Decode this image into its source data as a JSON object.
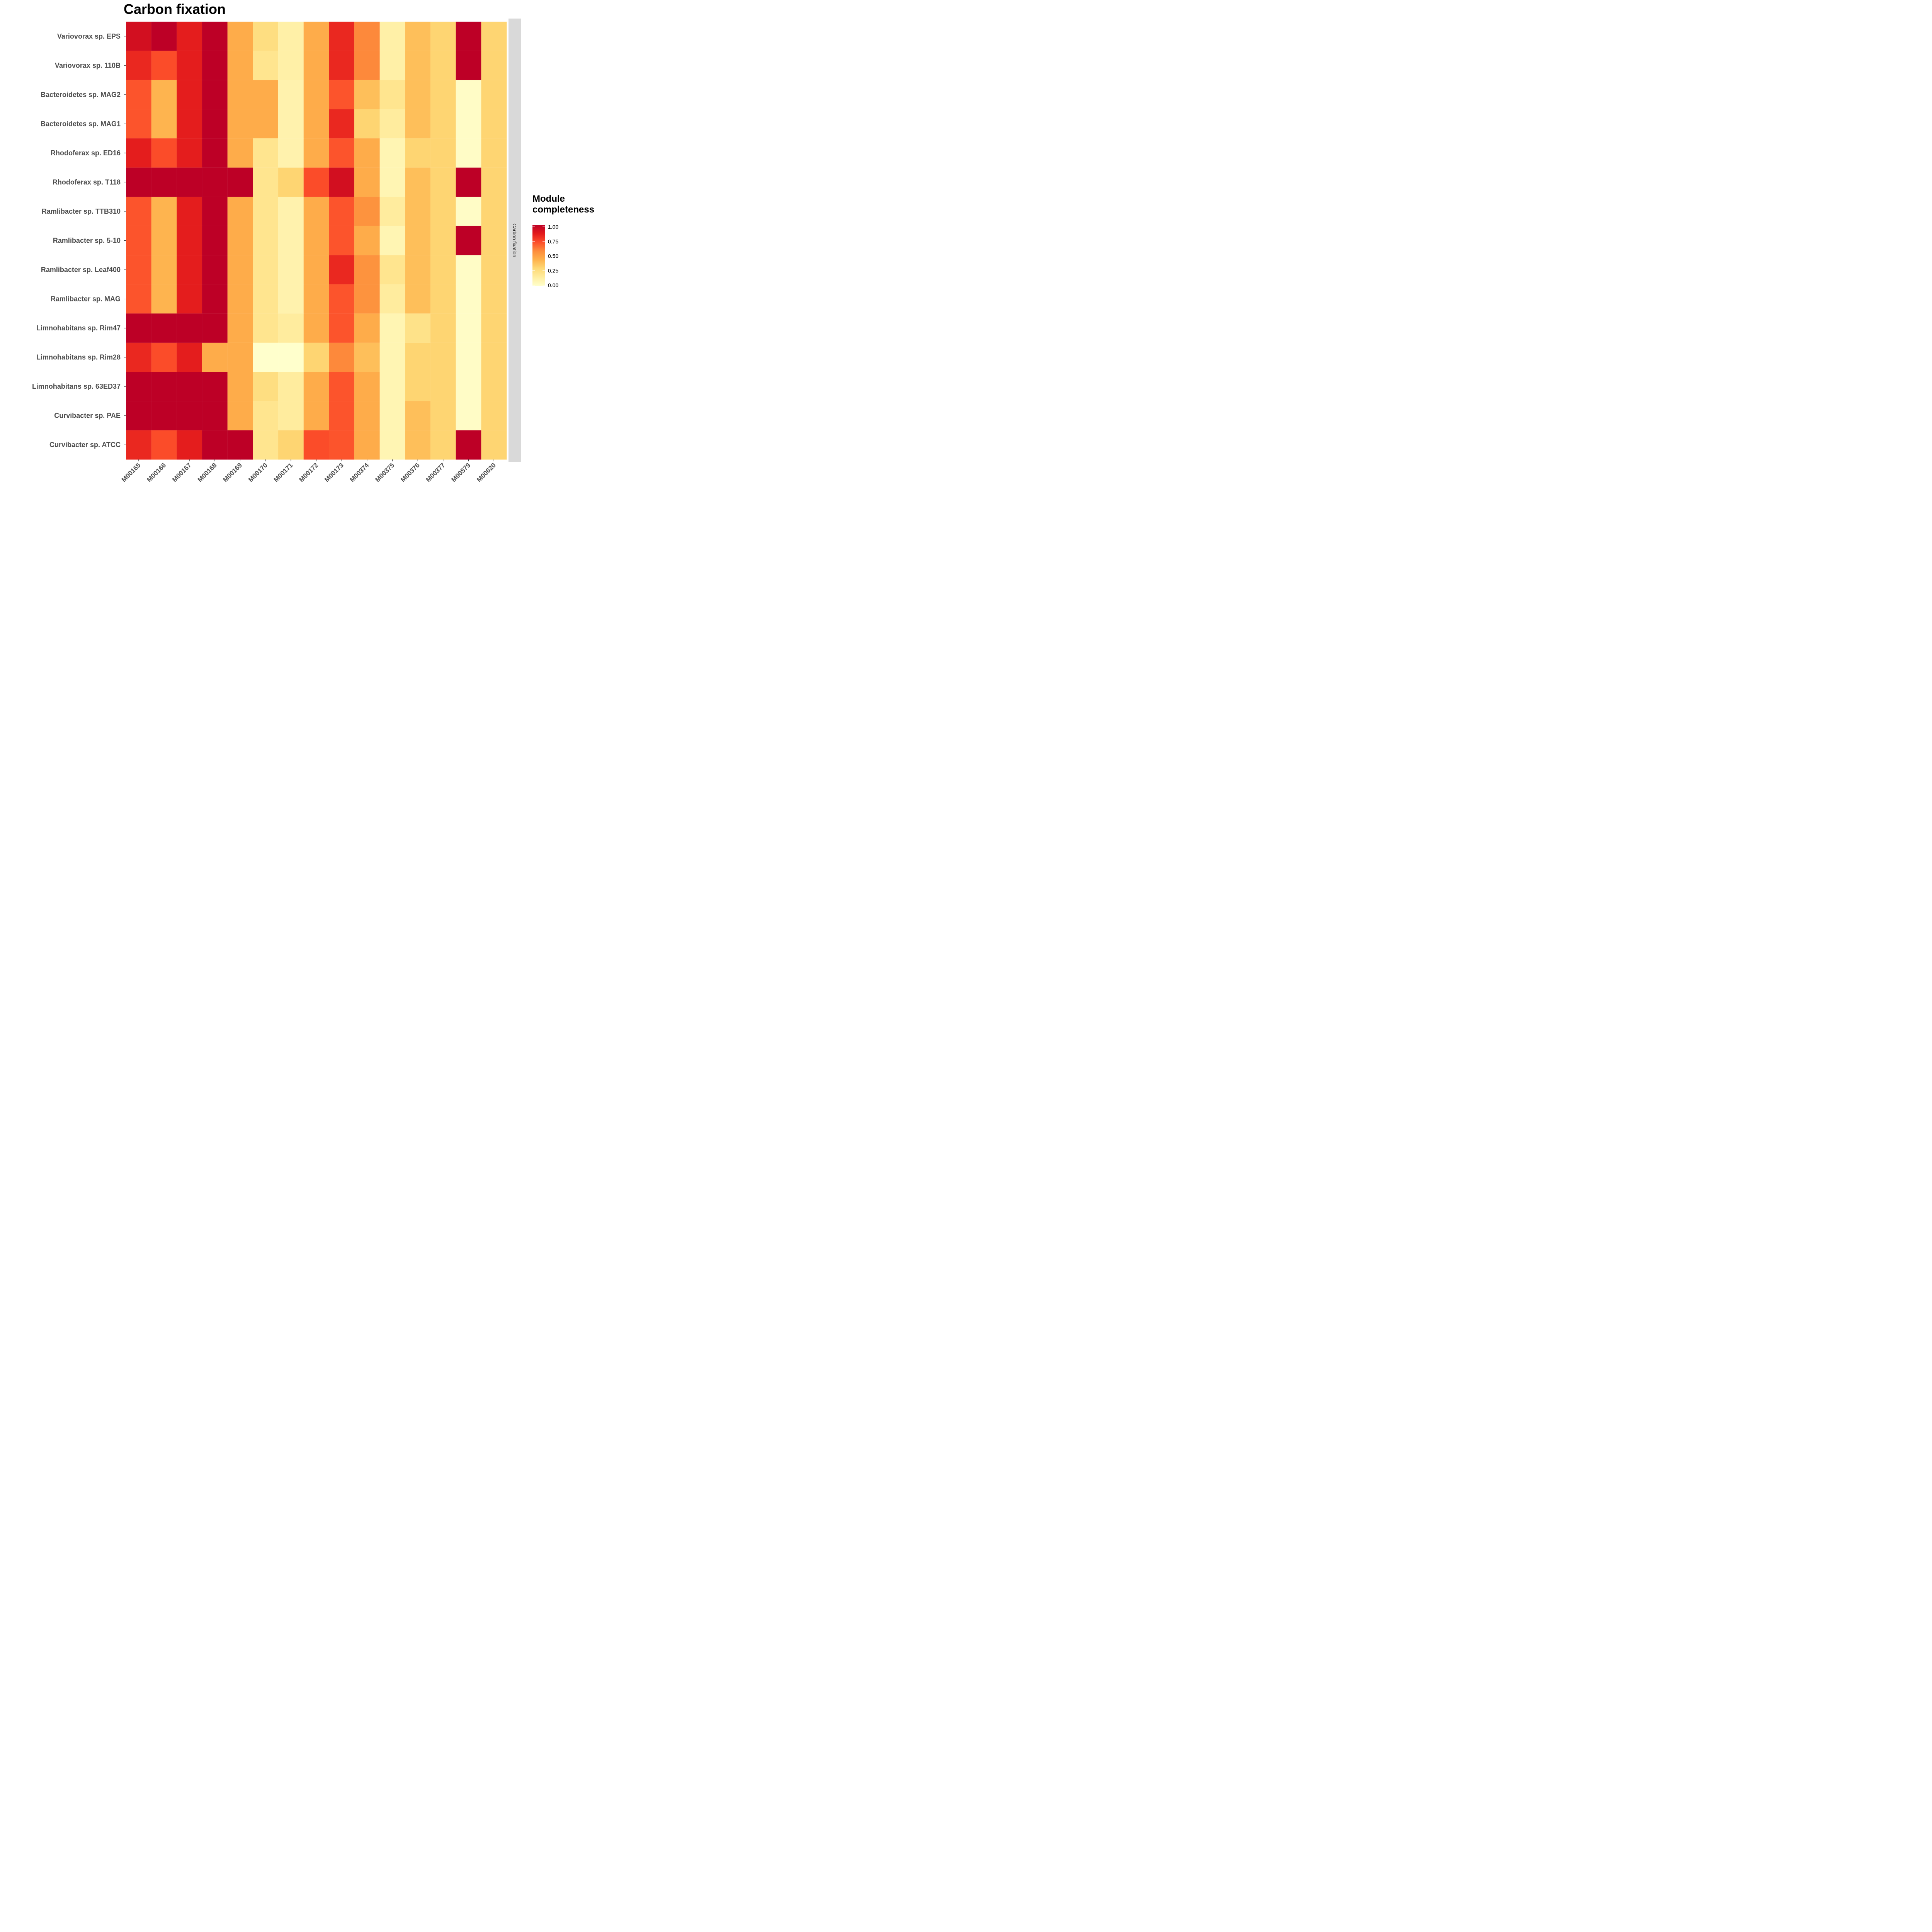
{
  "chart_data": {
    "type": "heatmap",
    "title": "Carbon fixation",
    "facet_label": "Carbon fixation",
    "legend_title": [
      "Module",
      "completeness"
    ],
    "legend_ticks": [
      "1.00",
      "0.75",
      "0.50",
      "0.25",
      "0.00"
    ],
    "legend_tick_values": [
      1.0,
      0.75,
      0.5,
      0.25,
      0.0
    ],
    "color_scale": {
      "low": "#ffffcc",
      "stops": [
        "#ffffcc",
        "#ffeda0",
        "#fed976",
        "#feb24c",
        "#fd8d3c",
        "#fc4e2a",
        "#e31a1c",
        "#bd0026"
      ],
      "range": [
        0,
        1
      ]
    },
    "x_categories": [
      "M00165",
      "M00166",
      "M00167",
      "M00168",
      "M00169",
      "M00170",
      "M00171",
      "M00172",
      "M00173",
      "M00374",
      "M00375",
      "M00376",
      "M00377",
      "M00579",
      "M00620"
    ],
    "y_categories": [
      "Variovorax sp. EPS",
      "Variovorax sp. 110B",
      "Bacteroidetes sp. MAG2",
      "Bacteroidetes sp. MAG1",
      "Rhodoferax sp. ED16",
      "Rhodoferax sp. T118",
      "Ramlibacter sp. TTB310",
      "Ramlibacter sp. 5-10",
      "Ramlibacter sp. Leaf400",
      "Ramlibacter sp. MAG",
      "Limnohabitans sp. Rim47",
      "Limnohabitans sp. Rim28",
      "Limnohabitans sp. 63ED37",
      "Curvibacter sp. PAE",
      "Curvibacter sp. ATCC"
    ],
    "values": [
      [
        0.92,
        1.0,
        0.85,
        1.0,
        0.45,
        0.25,
        0.12,
        0.45,
        0.82,
        0.58,
        0.12,
        0.38,
        0.3,
        1.0,
        0.3
      ],
      [
        0.82,
        0.72,
        0.85,
        1.0,
        0.45,
        0.2,
        0.12,
        0.45,
        0.82,
        0.58,
        0.12,
        0.38,
        0.3,
        1.0,
        0.3
      ],
      [
        0.7,
        0.42,
        0.85,
        1.0,
        0.45,
        0.45,
        0.1,
        0.45,
        0.7,
        0.38,
        0.2,
        0.38,
        0.3,
        0.02,
        0.3
      ],
      [
        0.7,
        0.42,
        0.85,
        1.0,
        0.45,
        0.45,
        0.1,
        0.45,
        0.82,
        0.3,
        0.15,
        0.38,
        0.3,
        0.02,
        0.3
      ],
      [
        0.85,
        0.72,
        0.85,
        1.0,
        0.45,
        0.2,
        0.1,
        0.45,
        0.7,
        0.45,
        0.08,
        0.3,
        0.3,
        0.02,
        0.3
      ],
      [
        1.0,
        1.0,
        1.0,
        1.0,
        1.0,
        0.2,
        0.3,
        0.72,
        0.92,
        0.45,
        0.08,
        0.38,
        0.3,
        1.0,
        0.3
      ],
      [
        0.7,
        0.42,
        0.85,
        1.0,
        0.45,
        0.2,
        0.1,
        0.45,
        0.7,
        0.55,
        0.15,
        0.38,
        0.3,
        0.02,
        0.3
      ],
      [
        0.7,
        0.42,
        0.85,
        1.0,
        0.45,
        0.2,
        0.1,
        0.45,
        0.7,
        0.45,
        0.08,
        0.38,
        0.3,
        1.0,
        0.3
      ],
      [
        0.7,
        0.42,
        0.85,
        1.0,
        0.45,
        0.2,
        0.1,
        0.45,
        0.82,
        0.55,
        0.2,
        0.38,
        0.3,
        0.02,
        0.3
      ],
      [
        0.7,
        0.42,
        0.85,
        1.0,
        0.45,
        0.2,
        0.1,
        0.45,
        0.7,
        0.55,
        0.15,
        0.38,
        0.3,
        0.02,
        0.3
      ],
      [
        1.0,
        1.0,
        1.0,
        1.0,
        0.45,
        0.2,
        0.15,
        0.45,
        0.7,
        0.45,
        0.08,
        0.22,
        0.3,
        0.02,
        0.3
      ],
      [
        0.82,
        0.72,
        0.85,
        0.45,
        0.45,
        0.0,
        0.0,
        0.3,
        0.58,
        0.38,
        0.08,
        0.3,
        0.3,
        0.02,
        0.3
      ],
      [
        1.0,
        1.0,
        1.0,
        1.0,
        0.45,
        0.25,
        0.15,
        0.45,
        0.7,
        0.45,
        0.08,
        0.3,
        0.3,
        0.02,
        0.3
      ],
      [
        1.0,
        1.0,
        1.0,
        1.0,
        0.45,
        0.2,
        0.15,
        0.45,
        0.7,
        0.45,
        0.08,
        0.38,
        0.3,
        0.02,
        0.3
      ],
      [
        0.82,
        0.72,
        0.85,
        1.0,
        1.0,
        0.2,
        0.3,
        0.72,
        0.7,
        0.45,
        0.08,
        0.38,
        0.3,
        1.0,
        0.3
      ]
    ],
    "grid": false,
    "legend_position": "right"
  }
}
